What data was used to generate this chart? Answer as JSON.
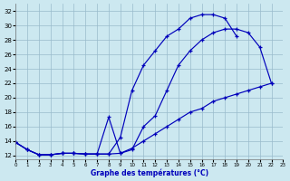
{
  "background_color": "#cce8f0",
  "grid_color": "#99bbcc",
  "line_color": "#0000bb",
  "xlabel": "Graphe des températures (°C)",
  "xlim": [
    0,
    23
  ],
  "ylim": [
    11.5,
    33
  ],
  "yticks": [
    12,
    14,
    16,
    18,
    20,
    22,
    24,
    26,
    28,
    30,
    32
  ],
  "xticks": [
    0,
    1,
    2,
    3,
    4,
    5,
    6,
    7,
    8,
    9,
    10,
    11,
    12,
    13,
    14,
    15,
    16,
    17,
    18,
    19,
    20,
    21,
    22,
    23
  ],
  "y1": [
    13.8,
    12.8,
    12.1,
    12.1,
    12.3,
    12.3,
    12.2,
    12.2,
    12.2,
    14.5,
    21.0,
    24.5,
    26.5,
    28.5,
    29.5,
    31.0,
    31.5,
    31.5,
    31.0,
    28.5,
    null,
    null,
    null,
    null
  ],
  "y2": [
    13.8,
    12.8,
    12.1,
    12.1,
    12.3,
    12.3,
    12.2,
    12.2,
    17.3,
    12.3,
    12.8,
    16.0,
    17.5,
    21.0,
    24.5,
    26.5,
    28.0,
    29.0,
    29.5,
    29.5,
    29.0,
    27.0,
    22.0,
    null
  ],
  "y3": [
    13.8,
    12.8,
    12.1,
    12.1,
    12.3,
    12.3,
    12.2,
    12.2,
    12.2,
    12.3,
    13.0,
    14.0,
    15.0,
    16.0,
    17.0,
    18.0,
    18.5,
    19.5,
    20.0,
    20.5,
    21.0,
    21.5,
    22.0,
    null
  ]
}
